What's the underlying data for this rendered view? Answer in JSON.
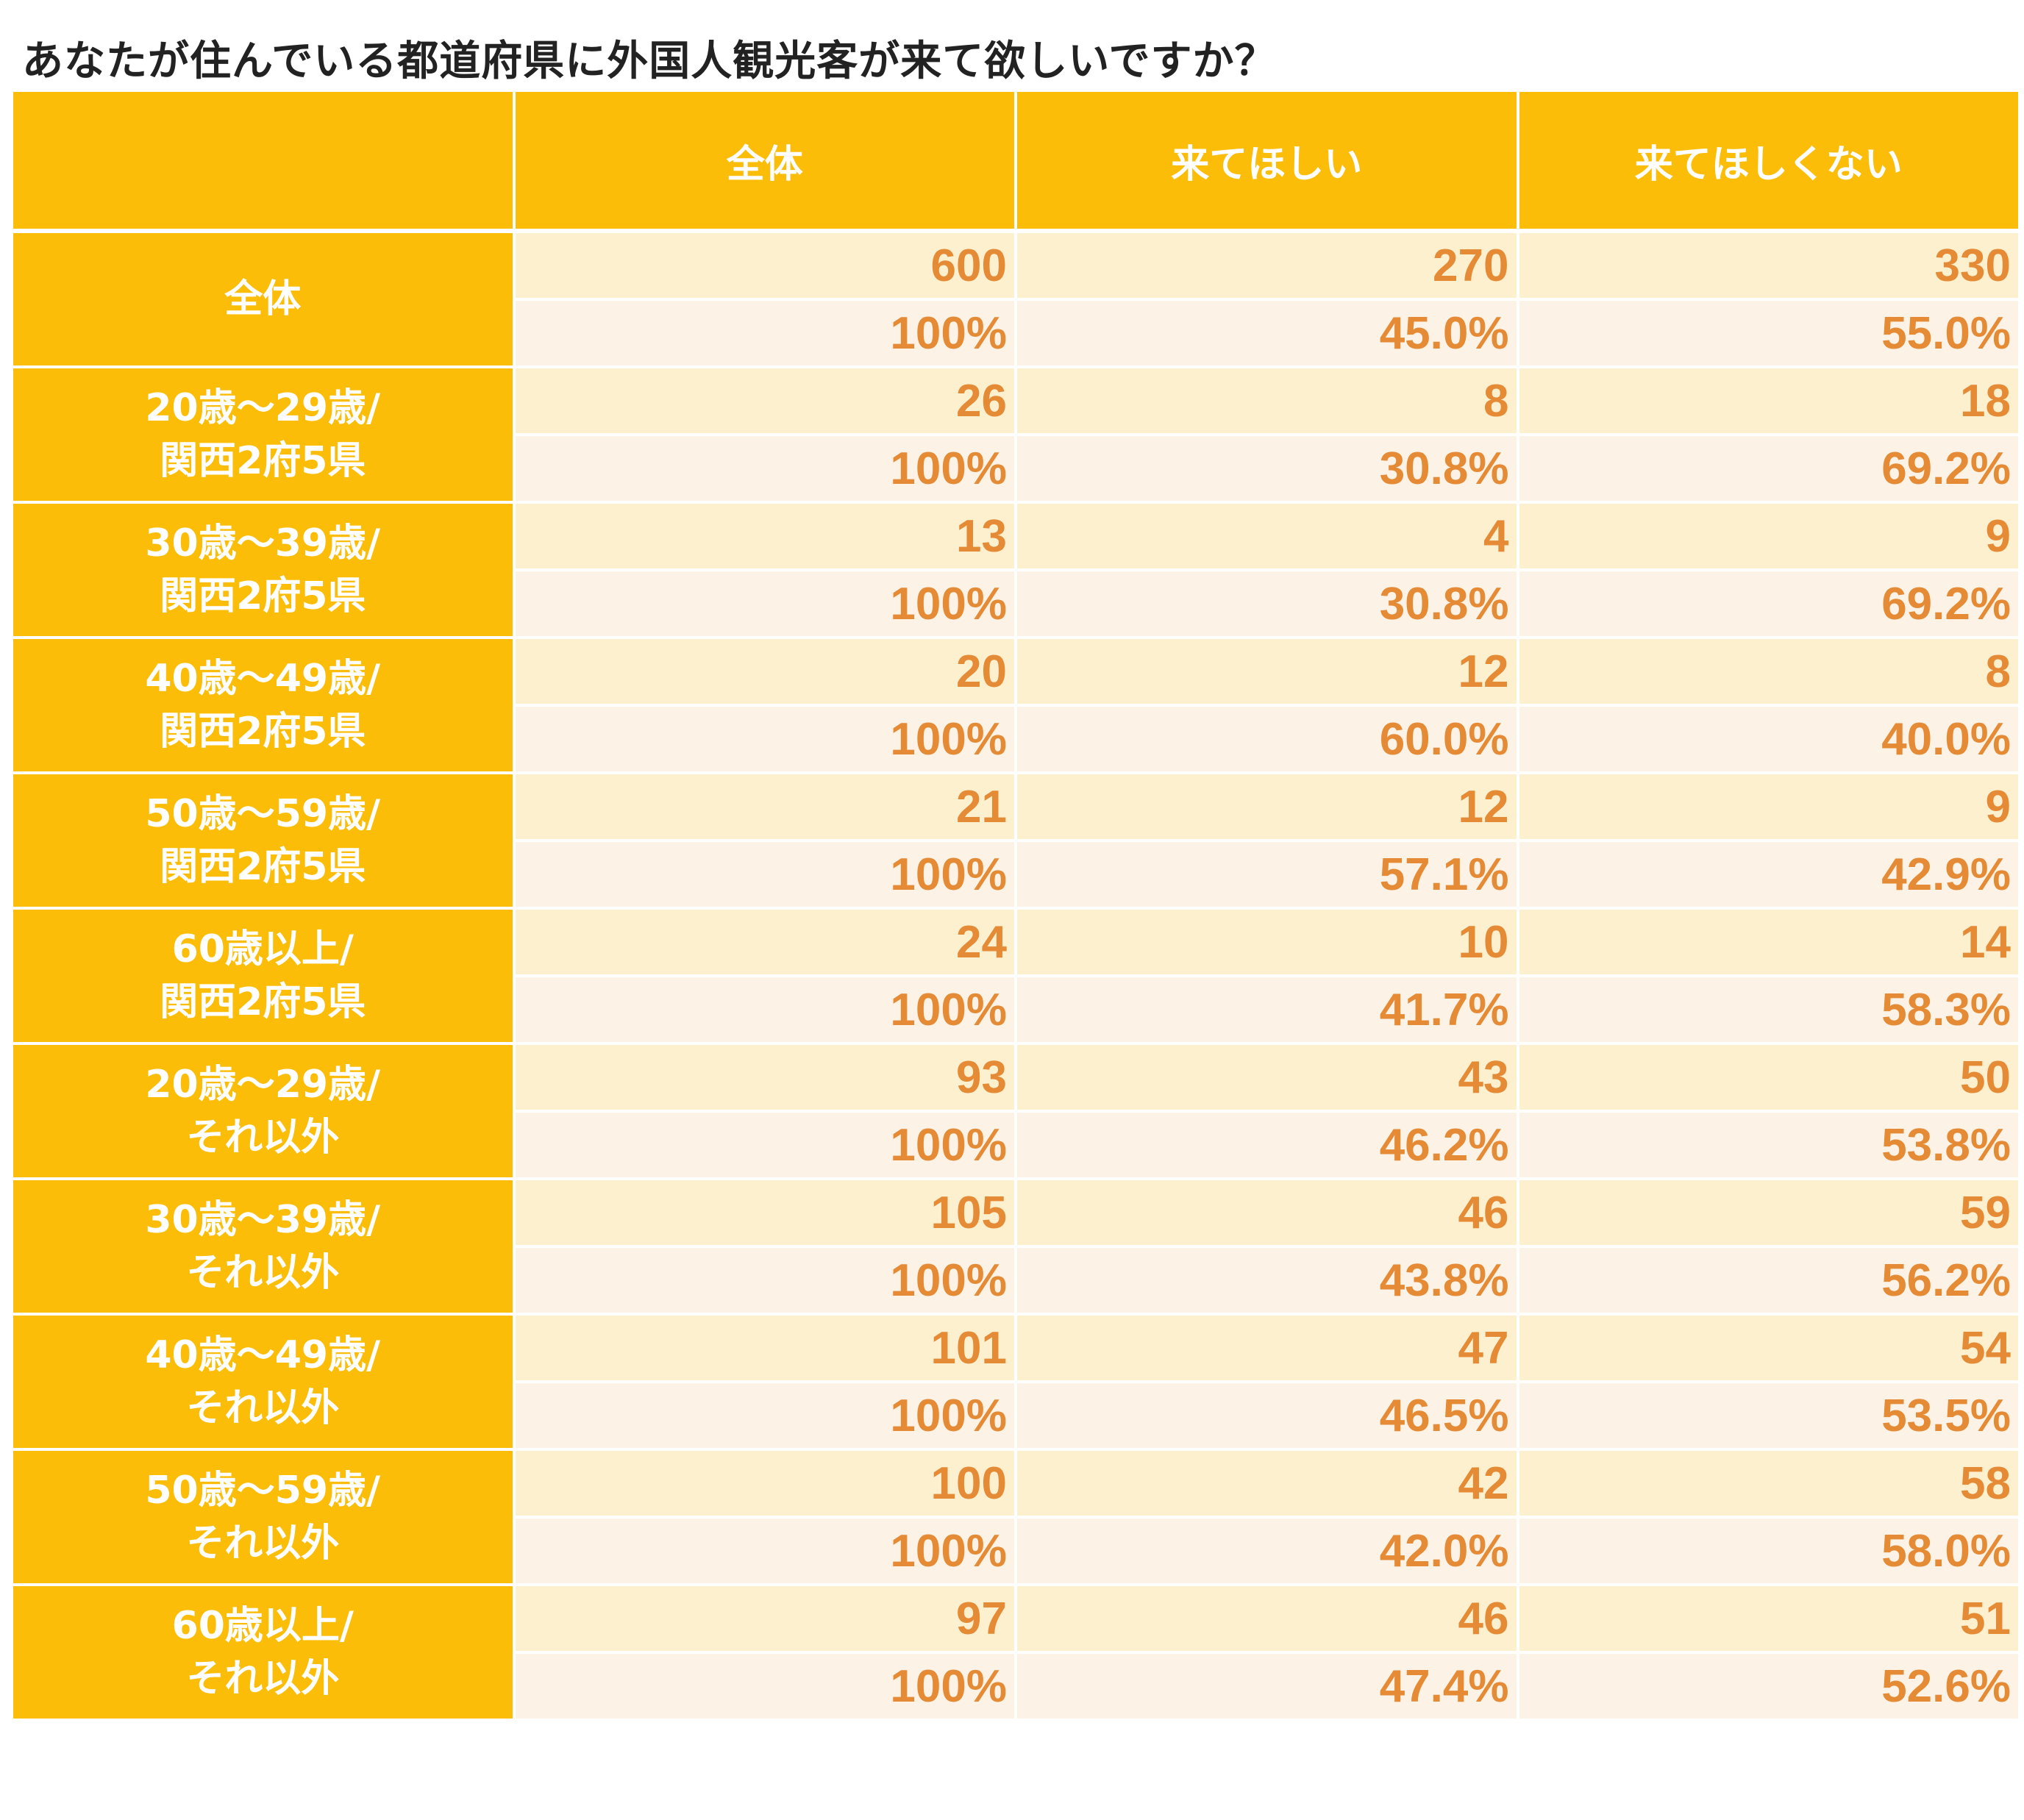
{
  "title": "あなたが住んでいる都道府県に外国人観光客が来て欲しいですか？",
  "colors": {
    "header_bg": "#fbbd08",
    "count_row_bg": "#fdf0cf",
    "pct_row_bg": "#fcf3e6",
    "value_text": "#e58a35"
  },
  "chart_data": {
    "type": "table",
    "title": "あなたが住んでいる都道府県に外国人観光客が来て欲しいですか？",
    "columns": [
      "全体",
      "来てほしい",
      "来てほしくない"
    ],
    "rows": [
      {
        "label": [
          "全体"
        ],
        "counts": [
          "600",
          "270",
          "330"
        ],
        "percents": [
          "100%",
          "45.0%",
          "55.0%"
        ]
      },
      {
        "label": [
          "20歳〜29歳/",
          "関西2府5県"
        ],
        "counts": [
          "26",
          "8",
          "18"
        ],
        "percents": [
          "100%",
          "30.8%",
          "69.2%"
        ]
      },
      {
        "label": [
          "30歳〜39歳/",
          "関西2府5県"
        ],
        "counts": [
          "13",
          "4",
          "9"
        ],
        "percents": [
          "100%",
          "30.8%",
          "69.2%"
        ]
      },
      {
        "label": [
          "40歳〜49歳/",
          "関西2府5県"
        ],
        "counts": [
          "20",
          "12",
          "8"
        ],
        "percents": [
          "100%",
          "60.0%",
          "40.0%"
        ]
      },
      {
        "label": [
          "50歳〜59歳/",
          "関西2府5県"
        ],
        "counts": [
          "21",
          "12",
          "9"
        ],
        "percents": [
          "100%",
          "57.1%",
          "42.9%"
        ]
      },
      {
        "label": [
          "60歳以上/",
          "関西2府5県"
        ],
        "counts": [
          "24",
          "10",
          "14"
        ],
        "percents": [
          "100%",
          "41.7%",
          "58.3%"
        ]
      },
      {
        "label": [
          "20歳〜29歳/",
          "それ以外"
        ],
        "counts": [
          "93",
          "43",
          "50"
        ],
        "percents": [
          "100%",
          "46.2%",
          "53.8%"
        ]
      },
      {
        "label": [
          "30歳〜39歳/",
          "それ以外"
        ],
        "counts": [
          "105",
          "46",
          "59"
        ],
        "percents": [
          "100%",
          "43.8%",
          "56.2%"
        ]
      },
      {
        "label": [
          "40歳〜49歳/",
          "それ以外"
        ],
        "counts": [
          "101",
          "47",
          "54"
        ],
        "percents": [
          "100%",
          "46.5%",
          "53.5%"
        ]
      },
      {
        "label": [
          "50歳〜59歳/",
          "それ以外"
        ],
        "counts": [
          "100",
          "42",
          "58"
        ],
        "percents": [
          "100%",
          "42.0%",
          "58.0%"
        ]
      },
      {
        "label": [
          "60歳以上/",
          "それ以外"
        ],
        "counts": [
          "97",
          "46",
          "51"
        ],
        "percents": [
          "100%",
          "47.4%",
          "52.6%"
        ]
      }
    ]
  }
}
